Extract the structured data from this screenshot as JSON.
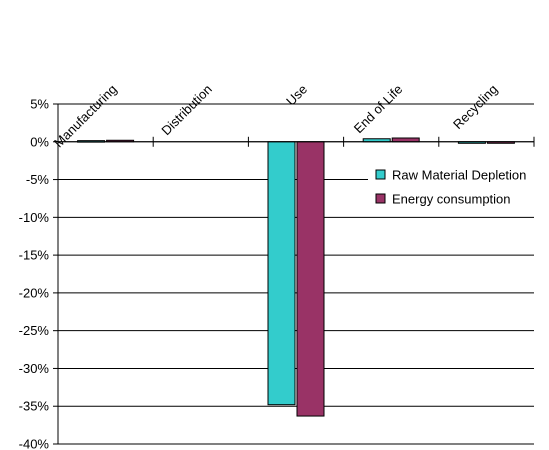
{
  "chart_data": {
    "type": "bar",
    "categories": [
      "Manufacturing",
      "Distribution",
      "Use",
      "End of Life",
      "Recycling"
    ],
    "series": [
      {
        "name": "Raw Material Depletion",
        "values": [
          0.15,
          0.0,
          -34.8,
          0.4,
          -0.2
        ],
        "color": "#33cccc"
      },
      {
        "name": "Energy consumption",
        "values": [
          0.2,
          0.0,
          -36.3,
          0.5,
          -0.15
        ],
        "color": "#993366"
      }
    ],
    "ylim": [
      -40,
      5
    ],
    "yticks": [
      5,
      0,
      -5,
      -10,
      -15,
      -20,
      -25,
      -30,
      -35,
      -40
    ],
    "ytick_labels": [
      "5%",
      "0%",
      "-5%",
      "-10%",
      "-15%",
      "-20%",
      "-25%",
      "-30%",
      "-35%",
      "-40%"
    ],
    "grid": true,
    "legend_position": "right",
    "xlabel": "",
    "ylabel": "",
    "title": ""
  }
}
